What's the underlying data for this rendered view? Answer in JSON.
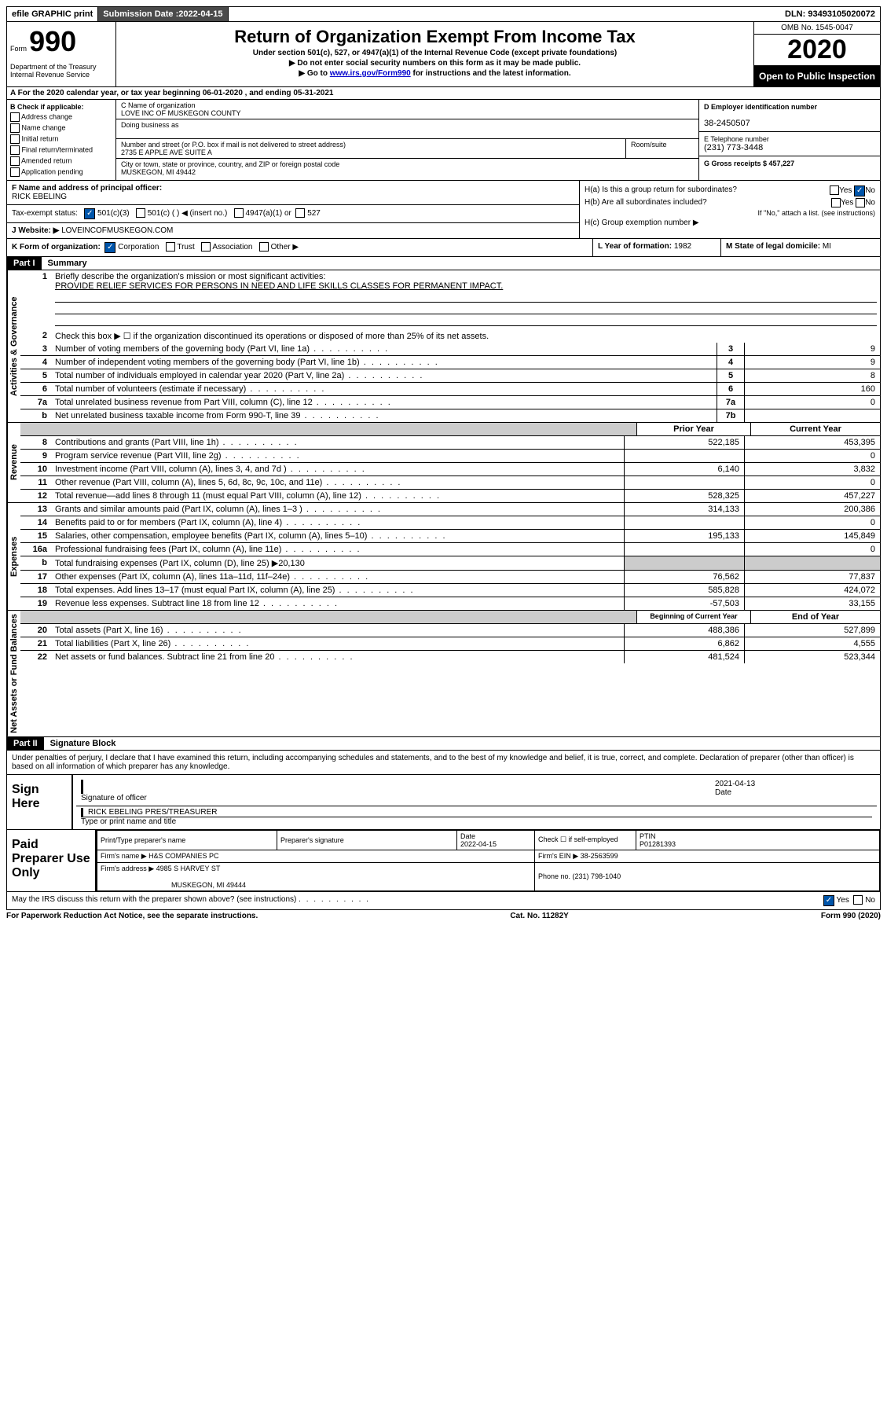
{
  "topbar": {
    "efile": "efile GRAPHIC print",
    "submission_label": "Submission Date : ",
    "submission_date": "2022-04-15",
    "dln_label": "DLN: ",
    "dln": "93493105020072"
  },
  "header": {
    "form_word": "Form",
    "form_num": "990",
    "dept": "Department of the Treasury\nInternal Revenue Service",
    "title": "Return of Organization Exempt From Income Tax",
    "sub": "Under section 501(c), 527, or 4947(a)(1) of the Internal Revenue Code (except private foundations)",
    "line1": "▶ Do not enter social security numbers on this form as it may be made public.",
    "line2_pre": "▶ Go to ",
    "line2_link": "www.irs.gov/Form990",
    "line2_post": " for instructions and the latest information.",
    "omb": "OMB No. 1545-0047",
    "year": "2020",
    "open": "Open to Public Inspection"
  },
  "sectionA": {
    "text": "A For the 2020 calendar year, or tax year beginning 06-01-2020   , and ending 05-31-2021"
  },
  "colB": {
    "title": "B Check if applicable:",
    "opts": [
      "Address change",
      "Name change",
      "Initial return",
      "Final return/terminated",
      "Amended return",
      "Application pending"
    ]
  },
  "colC": {
    "name_label": "C Name of organization",
    "name": "LOVE INC OF MUSKEGON COUNTY",
    "dba_label": "Doing business as",
    "street_label": "Number and street (or P.O. box if mail is not delivered to street address)",
    "room_label": "Room/suite",
    "street": "2735 E APPLE AVE SUITE A",
    "city_label": "City or town, state or province, country, and ZIP or foreign postal code",
    "city": "MUSKEGON, MI  49442"
  },
  "colD": {
    "ein_label": "D Employer identification number",
    "ein": "38-2450507",
    "phone_label": "E Telephone number",
    "phone": "(231) 773-3448",
    "gross_label": "G Gross receipts $ ",
    "gross": "457,227"
  },
  "rowF": {
    "f_label": "F  Name and address of principal officer:",
    "f_name": "RICK EBELING",
    "tax_status": "Tax-exempt status:",
    "status_501c3": "501(c)(3)",
    "status_501c": "501(c) (  ) ◀ (insert no.)",
    "status_4947": "4947(a)(1) or",
    "status_527": "527",
    "website_label": "J   Website: ▶ ",
    "website": "LOVEINCOFMUSKEGON.COM"
  },
  "colH": {
    "ha": "H(a)  Is this a group return for subordinates?",
    "hb": "H(b)  Are all subordinates included?",
    "hb_note": "If \"No,\" attach a list. (see instructions)",
    "hc": "H(c)  Group exemption number ▶",
    "yes": "Yes",
    "no": "No"
  },
  "rowK": {
    "k": "K Form of organization:",
    "corp": "Corporation",
    "trust": "Trust",
    "assoc": "Association",
    "other": "Other ▶",
    "l_label": "L Year of formation: ",
    "l_val": "1982",
    "m_label": "M State of legal domicile: ",
    "m_val": "MI"
  },
  "part1": {
    "label": "Part I",
    "title": "Summary",
    "vert_gov": "Activities & Governance",
    "vert_rev": "Revenue",
    "vert_exp": "Expenses",
    "vert_net": "Net Assets or Fund Balances",
    "q1": "Briefly describe the organization's mission or most significant activities:",
    "q1_ans": "PROVIDE RELIEF SERVICES FOR PERSONS IN NEED AND LIFE SKILLS CLASSES FOR PERMANENT IMPACT.",
    "q2": "Check this box ▶ ☐  if the organization discontinued its operations or disposed of more than 25% of its net assets.",
    "lines_gov": [
      {
        "n": "3",
        "t": "Number of voting members of the governing body (Part VI, line 1a)",
        "box": "3",
        "v": "9"
      },
      {
        "n": "4",
        "t": "Number of independent voting members of the governing body (Part VI, line 1b)",
        "box": "4",
        "v": "9"
      },
      {
        "n": "5",
        "t": "Total number of individuals employed in calendar year 2020 (Part V, line 2a)",
        "box": "5",
        "v": "8"
      },
      {
        "n": "6",
        "t": "Total number of volunteers (estimate if necessary)",
        "box": "6",
        "v": "160"
      },
      {
        "n": "7a",
        "t": "Total unrelated business revenue from Part VIII, column (C), line 12",
        "box": "7a",
        "v": "0"
      },
      {
        "n": "b",
        "t": "Net unrelated business taxable income from Form 990-T, line 39",
        "box": "7b",
        "v": ""
      }
    ],
    "hdr_prior": "Prior Year",
    "hdr_current": "Current Year",
    "lines_rev": [
      {
        "n": "8",
        "t": "Contributions and grants (Part VIII, line 1h)",
        "p": "522,185",
        "c": "453,395"
      },
      {
        "n": "9",
        "t": "Program service revenue (Part VIII, line 2g)",
        "p": "",
        "c": "0"
      },
      {
        "n": "10",
        "t": "Investment income (Part VIII, column (A), lines 3, 4, and 7d )",
        "p": "6,140",
        "c": "3,832"
      },
      {
        "n": "11",
        "t": "Other revenue (Part VIII, column (A), lines 5, 6d, 8c, 9c, 10c, and 11e)",
        "p": "",
        "c": "0"
      },
      {
        "n": "12",
        "t": "Total revenue—add lines 8 through 11 (must equal Part VIII, column (A), line 12)",
        "p": "528,325",
        "c": "457,227"
      }
    ],
    "lines_exp": [
      {
        "n": "13",
        "t": "Grants and similar amounts paid (Part IX, column (A), lines 1–3 )",
        "p": "314,133",
        "c": "200,386"
      },
      {
        "n": "14",
        "t": "Benefits paid to or for members (Part IX, column (A), line 4)",
        "p": "",
        "c": "0"
      },
      {
        "n": "15",
        "t": "Salaries, other compensation, employee benefits (Part IX, column (A), lines 5–10)",
        "p": "195,133",
        "c": "145,849"
      },
      {
        "n": "16a",
        "t": "Professional fundraising fees (Part IX, column (A), line 11e)",
        "p": "",
        "c": "0"
      },
      {
        "n": "b",
        "t": "Total fundraising expenses (Part IX, column (D), line 25) ▶20,130",
        "p": null,
        "c": null
      },
      {
        "n": "17",
        "t": "Other expenses (Part IX, column (A), lines 11a–11d, 11f–24e)",
        "p": "76,562",
        "c": "77,837"
      },
      {
        "n": "18",
        "t": "Total expenses. Add lines 13–17 (must equal Part IX, column (A), line 25)",
        "p": "585,828",
        "c": "424,072"
      },
      {
        "n": "19",
        "t": "Revenue less expenses. Subtract line 18 from line 12",
        "p": "-57,503",
        "c": "33,155"
      }
    ],
    "hdr_beg": "Beginning of Current Year",
    "hdr_end": "End of Year",
    "lines_net": [
      {
        "n": "20",
        "t": "Total assets (Part X, line 16)",
        "p": "488,386",
        "c": "527,899"
      },
      {
        "n": "21",
        "t": "Total liabilities (Part X, line 26)",
        "p": "6,862",
        "c": "4,555"
      },
      {
        "n": "22",
        "t": "Net assets or fund balances. Subtract line 21 from line 20",
        "p": "481,524",
        "c": "523,344"
      }
    ]
  },
  "part2": {
    "label": "Part II",
    "title": "Signature Block",
    "penalty": "Under penalties of perjury, I declare that I have examined this return, including accompanying schedules and statements, and to the best of my knowledge and belief, it is true, correct, and complete. Declaration of preparer (other than officer) is based on all information of which preparer has any knowledge.",
    "sign_here": "Sign Here",
    "sig_officer": "Signature of officer",
    "sig_date": "2021-04-13",
    "date_label": "Date",
    "officer_name": "RICK EBELING PRES/TREASURER",
    "type_name": "Type or print name and title",
    "paid_prep": "Paid Preparer Use Only",
    "prep_name_label": "Print/Type preparer's name",
    "prep_sig_label": "Preparer's signature",
    "prep_date_label": "Date",
    "prep_date": "2022-04-15",
    "check_self": "Check ☐ if self-employed",
    "ptin_label": "PTIN",
    "ptin": "P01281393",
    "firm_name_label": "Firm's name    ▶ ",
    "firm_name": "H&S COMPANIES PC",
    "firm_ein_label": "Firm's EIN ▶ ",
    "firm_ein": "38-2563599",
    "firm_addr_label": "Firm's address ▶ ",
    "firm_addr1": "4985 S HARVEY ST",
    "firm_addr2": "MUSKEGON, MI  49444",
    "phone_label": "Phone no. ",
    "phone": "(231) 798-1040",
    "discuss": "May the IRS discuss this return with the preparer shown above? (see instructions)"
  },
  "footer": {
    "left": "For Paperwork Reduction Act Notice, see the separate instructions.",
    "mid": "Cat. No. 11282Y",
    "right": "Form 990 (2020)"
  }
}
